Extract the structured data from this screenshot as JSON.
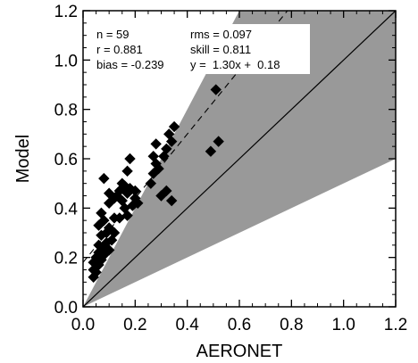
{
  "chart_data": {
    "type": "scatter",
    "xlabel": "AERONET",
    "ylabel": "Model",
    "xlim": [
      0.0,
      1.2
    ],
    "ylim": [
      0.0,
      1.2
    ],
    "xticks": [
      "0.0",
      "0.2",
      "0.4",
      "0.6",
      "0.8",
      "1.0",
      "1.2"
    ],
    "yticks": [
      "0.0",
      "0.2",
      "0.4",
      "0.6",
      "0.8",
      "1.0",
      "1.2"
    ],
    "grid": false,
    "legend": "none",
    "marker": "diamond",
    "marker_color": "#000000",
    "shade_color": "#999999",
    "shaded_region": "envelope between y = 2x and y = 0.5x",
    "reference_lines": [
      "y = x (solid)",
      "y = 1.30x + 0.18 (dashed)"
    ],
    "stats": {
      "n": "n = 59",
      "r": "r = 0.881",
      "bias": "bias = -0.239",
      "rms": "rms = 0.097",
      "skill": "skill = 0.811",
      "fit": "y =  1.30x +  0.18"
    },
    "fit": {
      "slope": 1.3,
      "intercept": 0.18
    },
    "points": [
      [
        0.04,
        0.12
      ],
      [
        0.04,
        0.15
      ],
      [
        0.05,
        0.14
      ],
      [
        0.04,
        0.18
      ],
      [
        0.06,
        0.17
      ],
      [
        0.05,
        0.2
      ],
      [
        0.06,
        0.22
      ],
      [
        0.07,
        0.19
      ],
      [
        0.08,
        0.21
      ],
      [
        0.06,
        0.25
      ],
      [
        0.08,
        0.24
      ],
      [
        0.09,
        0.26
      ],
      [
        0.1,
        0.23
      ],
      [
        0.11,
        0.27
      ],
      [
        0.07,
        0.29
      ],
      [
        0.09,
        0.3
      ],
      [
        0.1,
        0.32
      ],
      [
        0.06,
        0.33
      ],
      [
        0.08,
        0.35
      ],
      [
        0.07,
        0.38
      ],
      [
        0.12,
        0.3
      ],
      [
        0.12,
        0.36
      ],
      [
        0.14,
        0.36
      ],
      [
        0.16,
        0.4
      ],
      [
        0.17,
        0.37
      ],
      [
        0.1,
        0.42
      ],
      [
        0.12,
        0.44
      ],
      [
        0.13,
        0.45
      ],
      [
        0.15,
        0.43
      ],
      [
        0.17,
        0.46
      ],
      [
        0.18,
        0.48
      ],
      [
        0.2,
        0.44
      ],
      [
        0.19,
        0.41
      ],
      [
        0.21,
        0.42
      ],
      [
        0.14,
        0.47
      ],
      [
        0.15,
        0.5
      ],
      [
        0.17,
        0.55
      ],
      [
        0.18,
        0.6
      ],
      [
        0.08,
        0.52
      ],
      [
        0.1,
        0.46
      ],
      [
        0.16,
        0.49
      ],
      [
        0.2,
        0.47
      ],
      [
        0.26,
        0.5
      ],
      [
        0.27,
        0.54
      ],
      [
        0.28,
        0.58
      ],
      [
        0.27,
        0.61
      ],
      [
        0.29,
        0.56
      ],
      [
        0.28,
        0.66
      ],
      [
        0.3,
        0.45
      ],
      [
        0.32,
        0.47
      ],
      [
        0.34,
        0.43
      ],
      [
        0.31,
        0.61
      ],
      [
        0.32,
        0.64
      ],
      [
        0.33,
        0.7
      ],
      [
        0.34,
        0.67
      ],
      [
        0.35,
        0.73
      ],
      [
        0.49,
        0.63
      ],
      [
        0.52,
        0.67
      ],
      [
        0.51,
        0.88
      ]
    ]
  }
}
